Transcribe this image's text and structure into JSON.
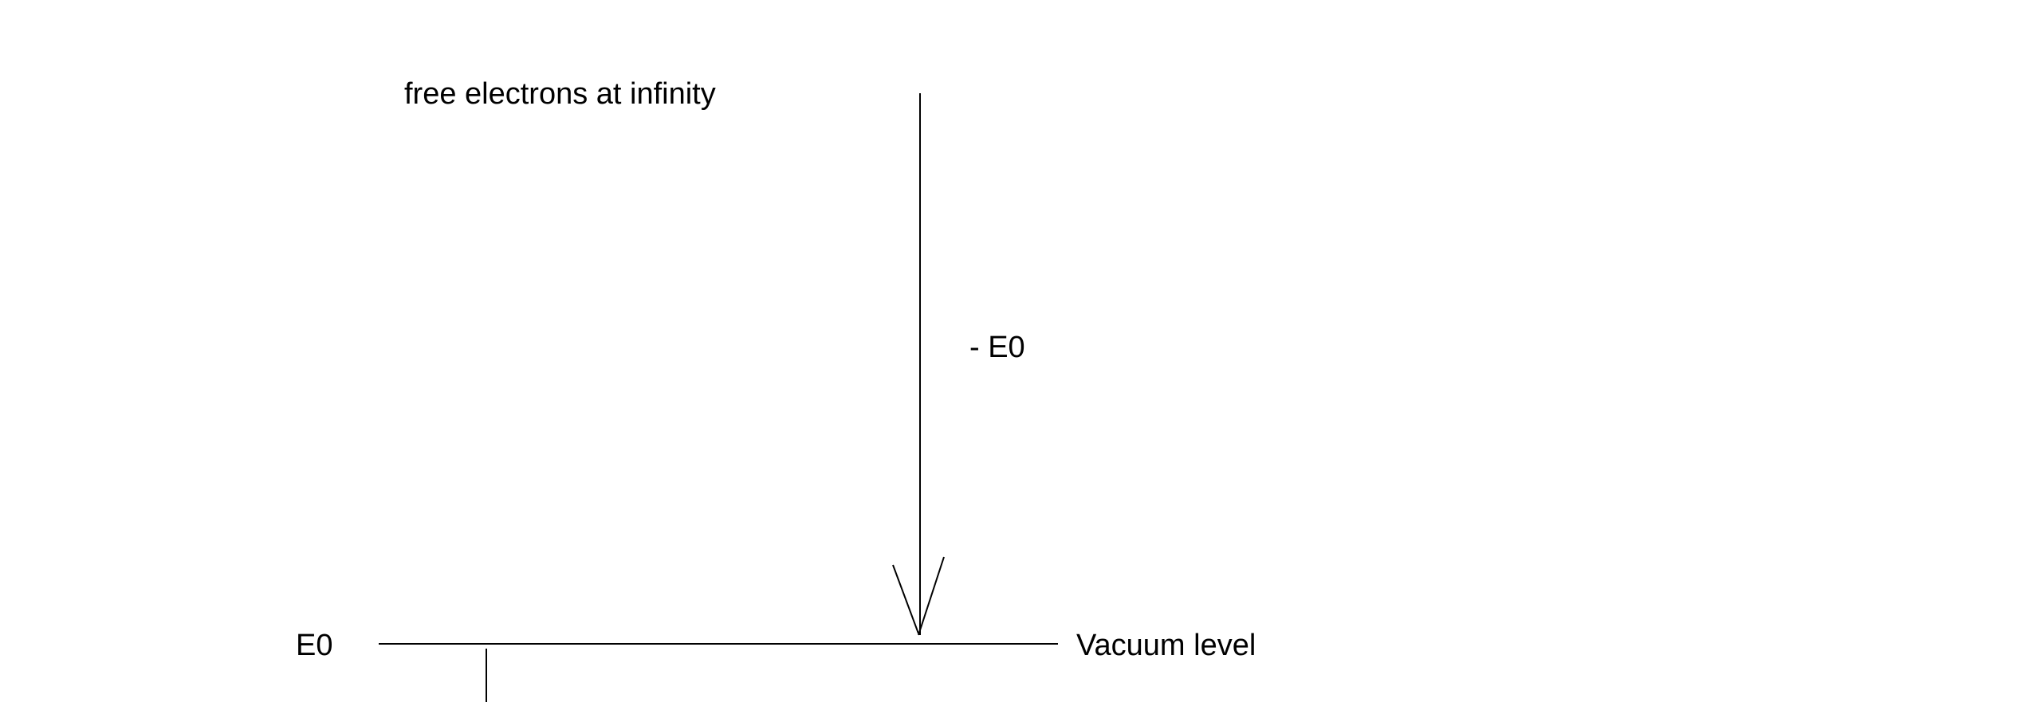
{
  "labels": {
    "top": "free electrons at infinity",
    "arrow": "- E0",
    "level_left": "E0",
    "level_right": "Vacuum level"
  },
  "colors": {
    "line": "#000000",
    "background": "#ffffff"
  }
}
